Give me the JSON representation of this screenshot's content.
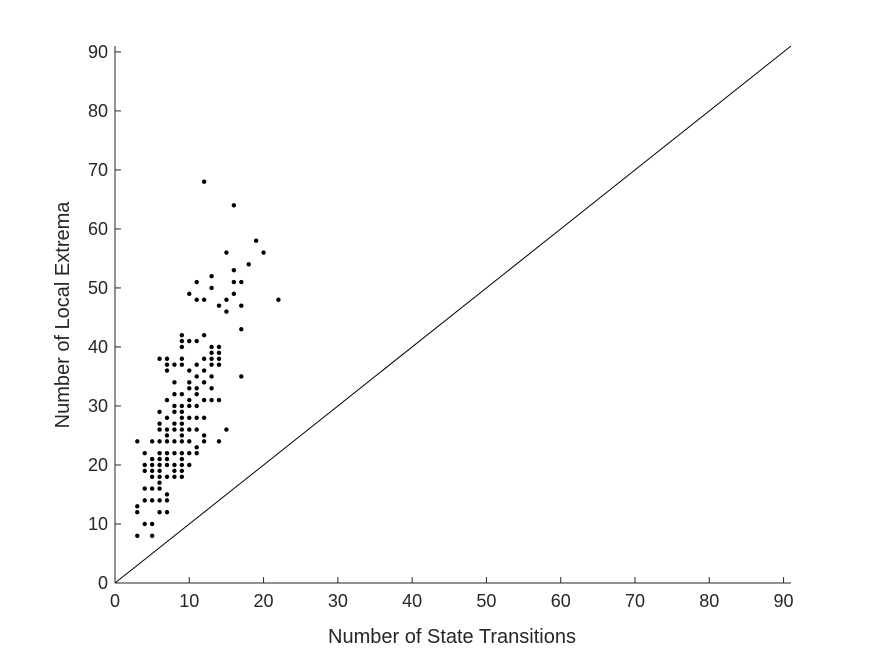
{
  "chart_data": {
    "type": "scatter",
    "title": "",
    "xlabel": "Number of State Transitions",
    "ylabel": "Number of Local Extrema",
    "xlim": [
      0,
      91
    ],
    "ylim": [
      0,
      91
    ],
    "xticks": [
      0,
      10,
      20,
      30,
      40,
      50,
      60,
      70,
      80,
      90
    ],
    "yticks": [
      0,
      10,
      20,
      30,
      40,
      50,
      60,
      70,
      80,
      90
    ],
    "grid": false,
    "legend": "none",
    "colors": {
      "points": "#000000",
      "axes": "#262626",
      "reference_line": "#000000",
      "background": "#ffffff"
    },
    "reference_line": {
      "x": [
        0,
        91
      ],
      "y": [
        0,
        91
      ]
    },
    "points": [
      [
        3,
        8
      ],
      [
        3,
        12
      ],
      [
        3,
        13
      ],
      [
        3,
        24
      ],
      [
        4,
        10
      ],
      [
        4,
        14
      ],
      [
        4,
        16
      ],
      [
        4,
        19
      ],
      [
        4,
        20
      ],
      [
        4,
        22
      ],
      [
        5,
        8
      ],
      [
        5,
        10
      ],
      [
        5,
        14
      ],
      [
        5,
        16
      ],
      [
        5,
        18
      ],
      [
        5,
        19
      ],
      [
        5,
        20
      ],
      [
        5,
        21
      ],
      [
        5,
        24
      ],
      [
        6,
        12
      ],
      [
        6,
        14
      ],
      [
        6,
        16
      ],
      [
        6,
        17
      ],
      [
        6,
        18
      ],
      [
        6,
        19
      ],
      [
        6,
        20
      ],
      [
        6,
        21
      ],
      [
        6,
        22
      ],
      [
        6,
        24
      ],
      [
        6,
        26
      ],
      [
        6,
        27
      ],
      [
        6,
        29
      ],
      [
        6,
        38
      ],
      [
        7,
        12
      ],
      [
        7,
        14
      ],
      [
        7,
        15
      ],
      [
        7,
        18
      ],
      [
        7,
        20
      ],
      [
        7,
        21
      ],
      [
        7,
        22
      ],
      [
        7,
        24
      ],
      [
        7,
        25
      ],
      [
        7,
        26
      ],
      [
        7,
        28
      ],
      [
        7,
        31
      ],
      [
        7,
        36
      ],
      [
        7,
        37
      ],
      [
        7,
        38
      ],
      [
        8,
        18
      ],
      [
        8,
        19
      ],
      [
        8,
        20
      ],
      [
        8,
        22
      ],
      [
        8,
        24
      ],
      [
        8,
        26
      ],
      [
        8,
        27
      ],
      [
        8,
        29
      ],
      [
        8,
        30
      ],
      [
        8,
        32
      ],
      [
        8,
        34
      ],
      [
        8,
        37
      ],
      [
        9,
        18
      ],
      [
        9,
        19
      ],
      [
        9,
        20
      ],
      [
        9,
        21
      ],
      [
        9,
        22
      ],
      [
        9,
        24
      ],
      [
        9,
        25
      ],
      [
        9,
        26
      ],
      [
        9,
        27
      ],
      [
        9,
        28
      ],
      [
        9,
        29
      ],
      [
        9,
        30
      ],
      [
        9,
        32
      ],
      [
        9,
        37
      ],
      [
        9,
        38
      ],
      [
        9,
        40
      ],
      [
        9,
        41
      ],
      [
        9,
        42
      ],
      [
        10,
        20
      ],
      [
        10,
        22
      ],
      [
        10,
        24
      ],
      [
        10,
        26
      ],
      [
        10,
        28
      ],
      [
        10,
        30
      ],
      [
        10,
        31
      ],
      [
        10,
        33
      ],
      [
        10,
        34
      ],
      [
        10,
        36
      ],
      [
        10,
        41
      ],
      [
        10,
        49
      ],
      [
        11,
        22
      ],
      [
        11,
        23
      ],
      [
        11,
        26
      ],
      [
        11,
        28
      ],
      [
        11,
        30
      ],
      [
        11,
        32
      ],
      [
        11,
        33
      ],
      [
        11,
        35
      ],
      [
        11,
        37
      ],
      [
        11,
        41
      ],
      [
        11,
        48
      ],
      [
        11,
        51
      ],
      [
        12,
        24
      ],
      [
        12,
        25
      ],
      [
        12,
        28
      ],
      [
        12,
        31
      ],
      [
        12,
        34
      ],
      [
        12,
        36
      ],
      [
        12,
        38
      ],
      [
        12,
        42
      ],
      [
        12,
        48
      ],
      [
        12,
        68
      ],
      [
        13,
        31
      ],
      [
        13,
        33
      ],
      [
        13,
        35
      ],
      [
        13,
        37
      ],
      [
        13,
        38
      ],
      [
        13,
        39
      ],
      [
        13,
        40
      ],
      [
        13,
        50
      ],
      [
        13,
        52
      ],
      [
        14,
        24
      ],
      [
        14,
        31
      ],
      [
        14,
        37
      ],
      [
        14,
        38
      ],
      [
        14,
        39
      ],
      [
        14,
        40
      ],
      [
        14,
        47
      ],
      [
        15,
        26
      ],
      [
        15,
        46
      ],
      [
        15,
        48
      ],
      [
        15,
        56
      ],
      [
        16,
        49
      ],
      [
        16,
        51
      ],
      [
        16,
        53
      ],
      [
        16,
        64
      ],
      [
        17,
        35
      ],
      [
        17,
        43
      ],
      [
        17,
        47
      ],
      [
        17,
        51
      ],
      [
        18,
        54
      ],
      [
        19,
        58
      ],
      [
        20,
        56
      ],
      [
        22,
        48
      ]
    ]
  }
}
